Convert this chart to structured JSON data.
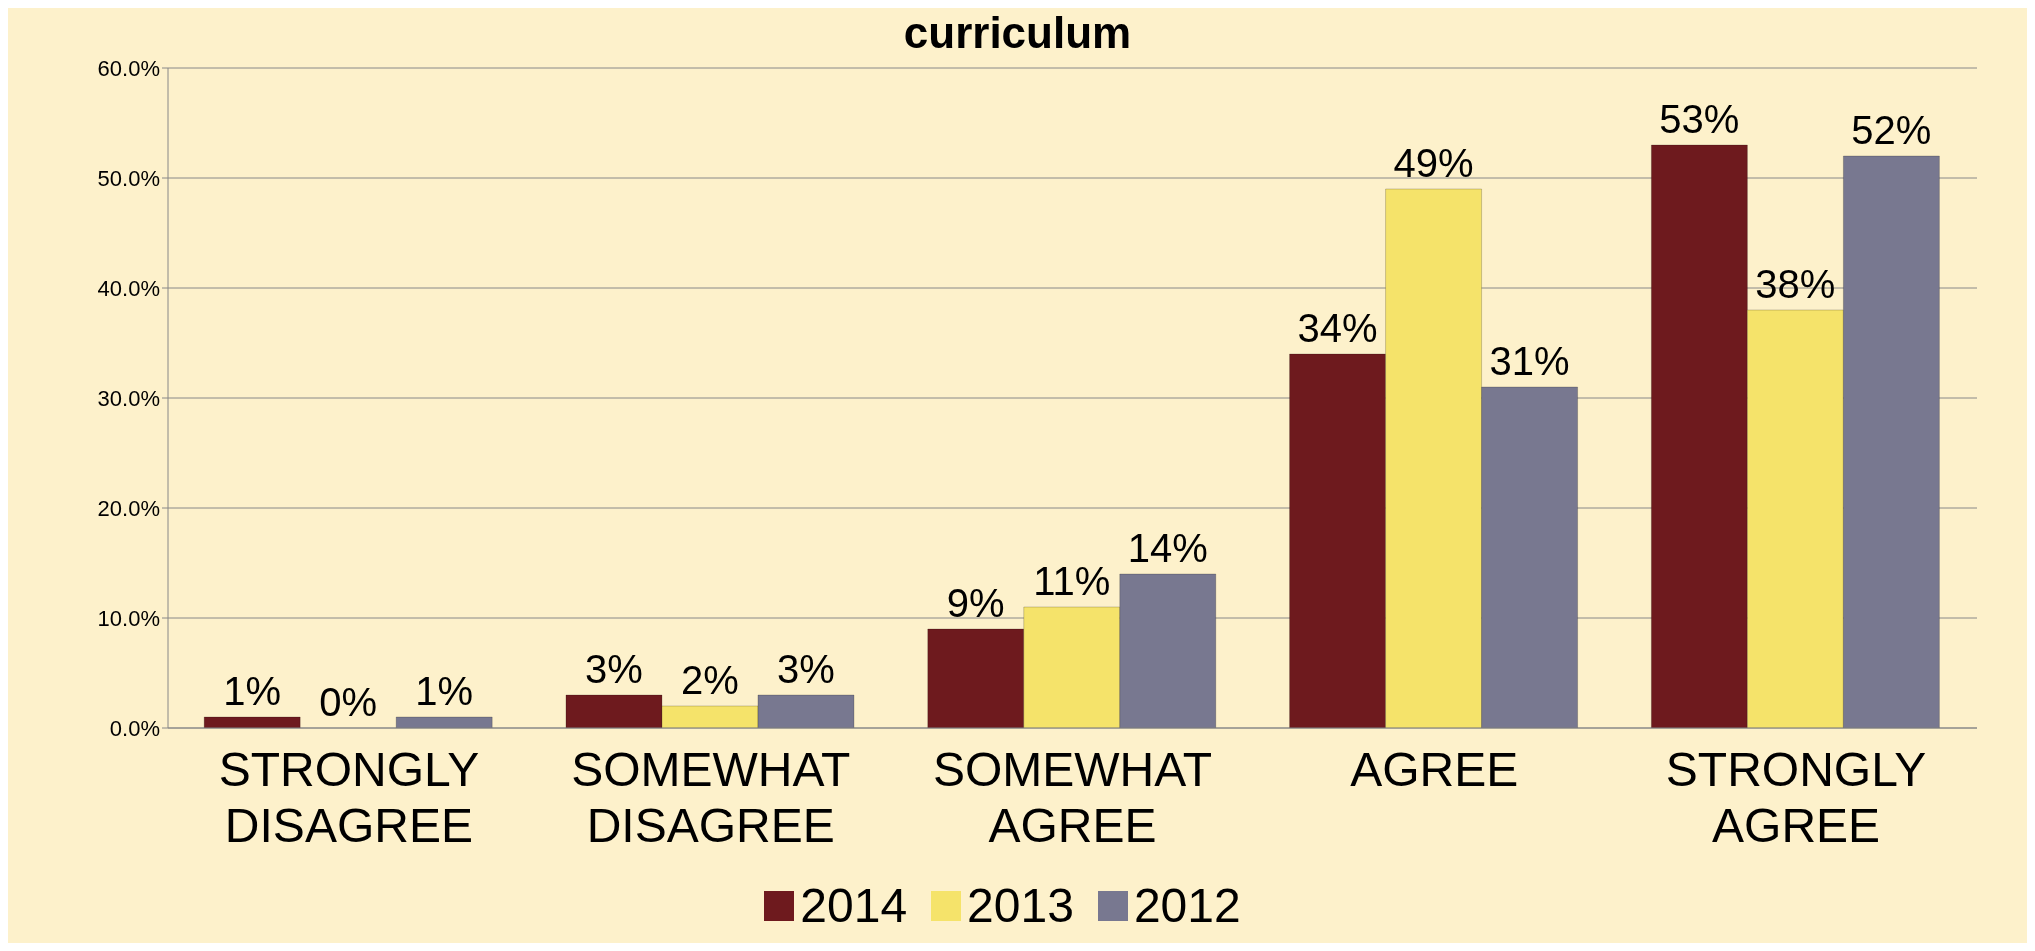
{
  "chart_data": {
    "type": "bar",
    "title": "curriculum",
    "categories": [
      "STRONGLY DISAGREE",
      "SOMEWHAT DISAGREE",
      "SOMEWHAT AGREE",
      "AGREE",
      "STRONGLY AGREE"
    ],
    "series": [
      {
        "name": "2014",
        "color": "#6e1a1e",
        "values": [
          1,
          3,
          9,
          34,
          53
        ],
        "value_labels": [
          "1%",
          "3%",
          "9%",
          "34%",
          "53%"
        ]
      },
      {
        "name": "2013",
        "color": "#f5e36a",
        "values": [
          0,
          2,
          11,
          49,
          38
        ],
        "value_labels": [
          "0%",
          "2%",
          "11%",
          "49%",
          "38%"
        ]
      },
      {
        "name": "2012",
        "color": "#787890",
        "values": [
          1,
          3,
          14,
          31,
          52
        ],
        "value_labels": [
          "1%",
          "3%",
          "14%",
          "31%",
          "52%"
        ]
      }
    ],
    "ylim": [
      0,
      60
    ],
    "yticks": [
      {
        "value": 0,
        "label": "0.0%"
      },
      {
        "value": 10,
        "label": "10.0%"
      },
      {
        "value": 20,
        "label": "20.0%"
      },
      {
        "value": 30,
        "label": "30.0%"
      },
      {
        "value": 40,
        "label": "40.0%"
      },
      {
        "value": 50,
        "label": "50.0%"
      },
      {
        "value": 60,
        "label": "60.0%"
      }
    ],
    "grid": "y",
    "legend": "bottom"
  }
}
